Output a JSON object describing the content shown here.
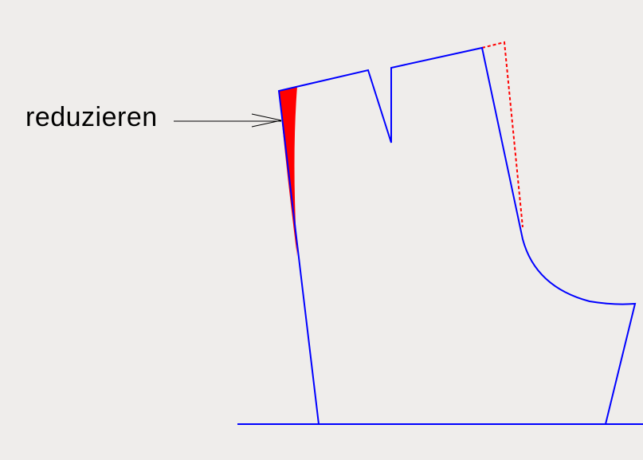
{
  "annotation": {
    "label": "reduzieren"
  },
  "colors": {
    "pattern_line": "#0000ff",
    "reduction_fill": "#ff0000",
    "original_dashed": "#ff0000",
    "arrow": "#000000",
    "background": "#efedeb"
  }
}
